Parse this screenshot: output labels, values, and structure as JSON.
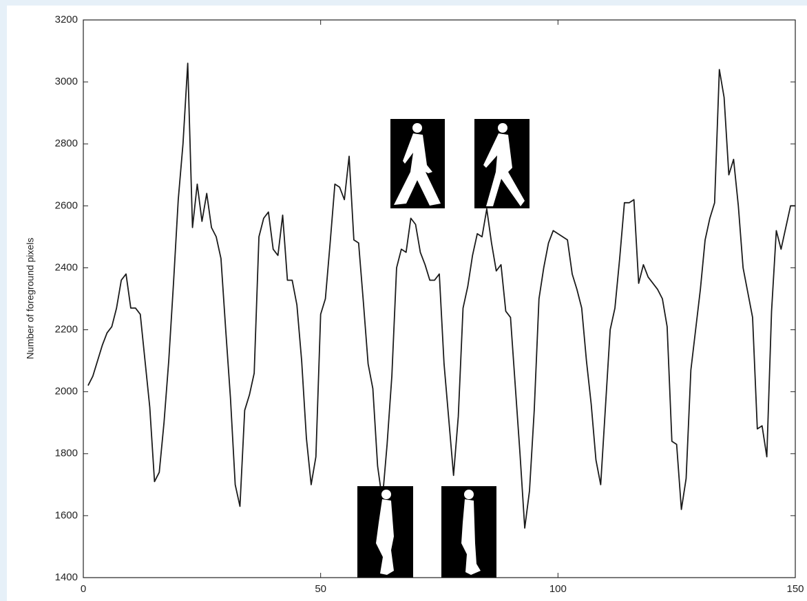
{
  "chart_data": {
    "type": "line",
    "y_label": "Number of foreground pixels",
    "xlim": [
      0,
      150
    ],
    "xticks": [
      0,
      50,
      100,
      150
    ],
    "ylim": [
      1400,
      3200
    ],
    "yticks": [
      1400,
      1600,
      1800,
      2000,
      2200,
      2400,
      2600,
      2800,
      3000,
      3200
    ],
    "x": [
      1,
      2,
      3,
      4,
      5,
      6,
      7,
      8,
      9,
      10,
      11,
      12,
      13,
      14,
      15,
      16,
      17,
      18,
      19,
      20,
      21,
      22,
      23,
      24,
      25,
      26,
      27,
      28,
      29,
      30,
      31,
      32,
      33,
      34,
      35,
      36,
      37,
      38,
      39,
      40,
      41,
      42,
      43,
      44,
      45,
      46,
      47,
      48,
      49,
      50,
      51,
      52,
      53,
      54,
      55,
      56,
      57,
      58,
      59,
      60,
      61,
      62,
      63,
      64,
      65,
      66,
      67,
      68,
      69,
      70,
      71,
      72,
      73,
      74,
      75,
      76,
      77,
      78,
      79,
      80,
      81,
      82,
      83,
      84,
      85,
      86,
      87,
      88,
      89,
      90,
      91,
      92,
      93,
      94,
      95,
      96,
      97,
      98,
      99,
      100,
      101,
      102,
      103,
      104,
      105,
      106,
      107,
      108,
      109,
      110,
      111,
      112,
      113,
      114,
      115,
      116,
      117,
      118,
      119,
      120,
      121,
      122,
      123,
      124,
      125,
      126,
      127,
      128,
      129,
      130,
      131,
      132,
      133,
      134,
      135,
      136,
      137,
      138,
      139,
      140,
      141,
      142,
      143,
      144,
      145,
      146,
      147,
      148,
      149,
      150
    ],
    "series": [
      {
        "color": "#1a1a1a",
        "values": [
          2020,
          2050,
          2100,
          2150,
          2190,
          2210,
          2270,
          2360,
          2380,
          2270,
          2270,
          2250,
          2100,
          1950,
          1710,
          1740,
          1900,
          2100,
          2350,
          2620,
          2800,
          3060,
          2530,
          2670,
          2550,
          2640,
          2530,
          2500,
          2430,
          2200,
          1980,
          1700,
          1630,
          1940,
          1990,
          2060,
          2500,
          2560,
          2580,
          2460,
          2440,
          2570,
          2360,
          2360,
          2280,
          2100,
          1850,
          1700,
          1790,
          2250,
          2300,
          2480,
          2670,
          2660,
          2620,
          2760,
          2490,
          2480,
          2290,
          2090,
          2010,
          1760,
          1650,
          1830,
          2050,
          2400,
          2460,
          2450,
          2560,
          2540,
          2450,
          2410,
          2360,
          2360,
          2380,
          2090,
          1910,
          1730,
          1920,
          2270,
          2340,
          2440,
          2510,
          2500,
          2590,
          2480,
          2390,
          2410,
          2260,
          2240,
          2020,
          1800,
          1560,
          1680,
          1940,
          2300,
          2400,
          2480,
          2520,
          2510,
          2500,
          2490,
          2380,
          2330,
          2270,
          2100,
          1960,
          1780,
          1700,
          1950,
          2200,
          2270,
          2430,
          2610,
          2610,
          2620,
          2350,
          2410,
          2370,
          2350,
          2330,
          2300,
          2210,
          1840,
          1830,
          1620,
          1720,
          2070,
          2200,
          2330,
          2490,
          2560,
          2610,
          3040,
          2950,
          2700,
          2750,
          2600,
          2400,
          2320,
          2240,
          1880,
          1890,
          1790,
          2260,
          2520,
          2460,
          2530,
          2600,
          2600
        ]
      }
    ]
  }
}
